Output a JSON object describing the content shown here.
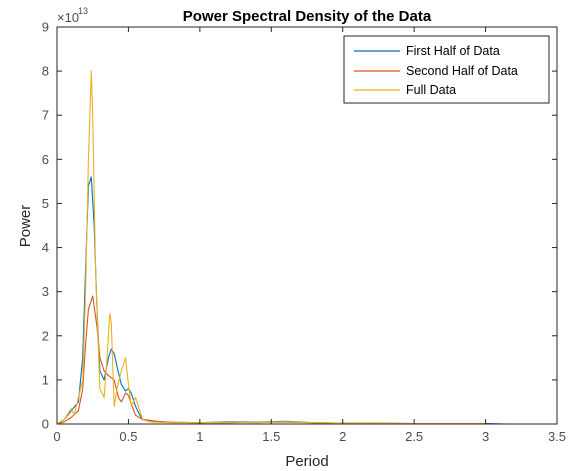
{
  "chart_data": {
    "type": "line",
    "title": "Power Spectral Density of the Data",
    "xlabel": "Period",
    "ylabel": "Power",
    "xlim": [
      0,
      3.5
    ],
    "ylim": [
      0,
      9
    ],
    "y_exponent_label": "×10",
    "y_exponent_power": "13",
    "xticks": [
      "0",
      "0.5",
      "1",
      "1.5",
      "2",
      "2.5",
      "3",
      "3.5"
    ],
    "yticks": [
      "0",
      "1",
      "2",
      "3",
      "4",
      "5",
      "6",
      "7",
      "8",
      "9"
    ],
    "legend_position": "top-right",
    "grid": false,
    "series": [
      {
        "name": "First Half of Data",
        "color": "#0072BD",
        "x": [
          0,
          0.05,
          0.1,
          0.15,
          0.18,
          0.2,
          0.22,
          0.24,
          0.26,
          0.28,
          0.3,
          0.33,
          0.36,
          0.38,
          0.4,
          0.42,
          0.45,
          0.48,
          0.5,
          0.52,
          0.55,
          0.58,
          0.6,
          0.65,
          0.7,
          0.8,
          1.0,
          1.2,
          1.4,
          1.6,
          1.8,
          2.0,
          2.5,
          3.0,
          3.15
        ],
        "y": [
          0,
          0.1,
          0.3,
          0.5,
          1.5,
          3.5,
          5.4,
          5.6,
          4.5,
          2.6,
          1.2,
          1.0,
          1.5,
          1.7,
          1.6,
          1.3,
          0.9,
          0.75,
          0.8,
          0.7,
          0.4,
          0.2,
          0.1,
          0.08,
          0.05,
          0.04,
          0.03,
          0.05,
          0.04,
          0.06,
          0.03,
          0.02,
          0.01,
          0.01,
          0
        ]
      },
      {
        "name": "Second Half of Data",
        "color": "#D95319",
        "x": [
          0,
          0.05,
          0.1,
          0.15,
          0.18,
          0.2,
          0.22,
          0.25,
          0.28,
          0.3,
          0.33,
          0.36,
          0.4,
          0.43,
          0.45,
          0.48,
          0.5,
          0.52,
          0.55,
          0.6,
          0.7,
          0.8,
          1.0,
          1.2,
          1.4,
          1.6,
          1.8,
          2.0,
          2.5,
          3.0
        ],
        "y": [
          0,
          0.05,
          0.15,
          0.3,
          0.8,
          1.8,
          2.6,
          2.9,
          2.2,
          1.5,
          1.2,
          1.1,
          1.0,
          0.6,
          0.5,
          0.7,
          0.65,
          0.45,
          0.2,
          0.1,
          0.06,
          0.04,
          0.03,
          0.03,
          0.04,
          0.04,
          0.03,
          0.02,
          0.01,
          0.01
        ]
      },
      {
        "name": "Full Data",
        "color": "#EDB120",
        "x": [
          0,
          0.05,
          0.1,
          0.12,
          0.15,
          0.18,
          0.2,
          0.22,
          0.24,
          0.25,
          0.27,
          0.3,
          0.33,
          0.35,
          0.37,
          0.38,
          0.4,
          0.42,
          0.45,
          0.48,
          0.5,
          0.52,
          0.55,
          0.58,
          0.6,
          0.65,
          0.7,
          0.8,
          1.0,
          1.2,
          1.4,
          1.6,
          1.8,
          2.0,
          2.5,
          3.0
        ],
        "y": [
          0,
          0.1,
          0.35,
          0.2,
          0.6,
          1.0,
          3.0,
          6.0,
          8.0,
          7.0,
          3.5,
          0.8,
          0.6,
          1.5,
          2.5,
          2.3,
          0.4,
          0.8,
          1.2,
          1.5,
          0.9,
          0.4,
          0.6,
          0.3,
          0.1,
          0.05,
          0.04,
          0.03,
          0.03,
          0.04,
          0.03,
          0.05,
          0.03,
          0.02,
          0.01,
          0.01
        ]
      }
    ]
  }
}
